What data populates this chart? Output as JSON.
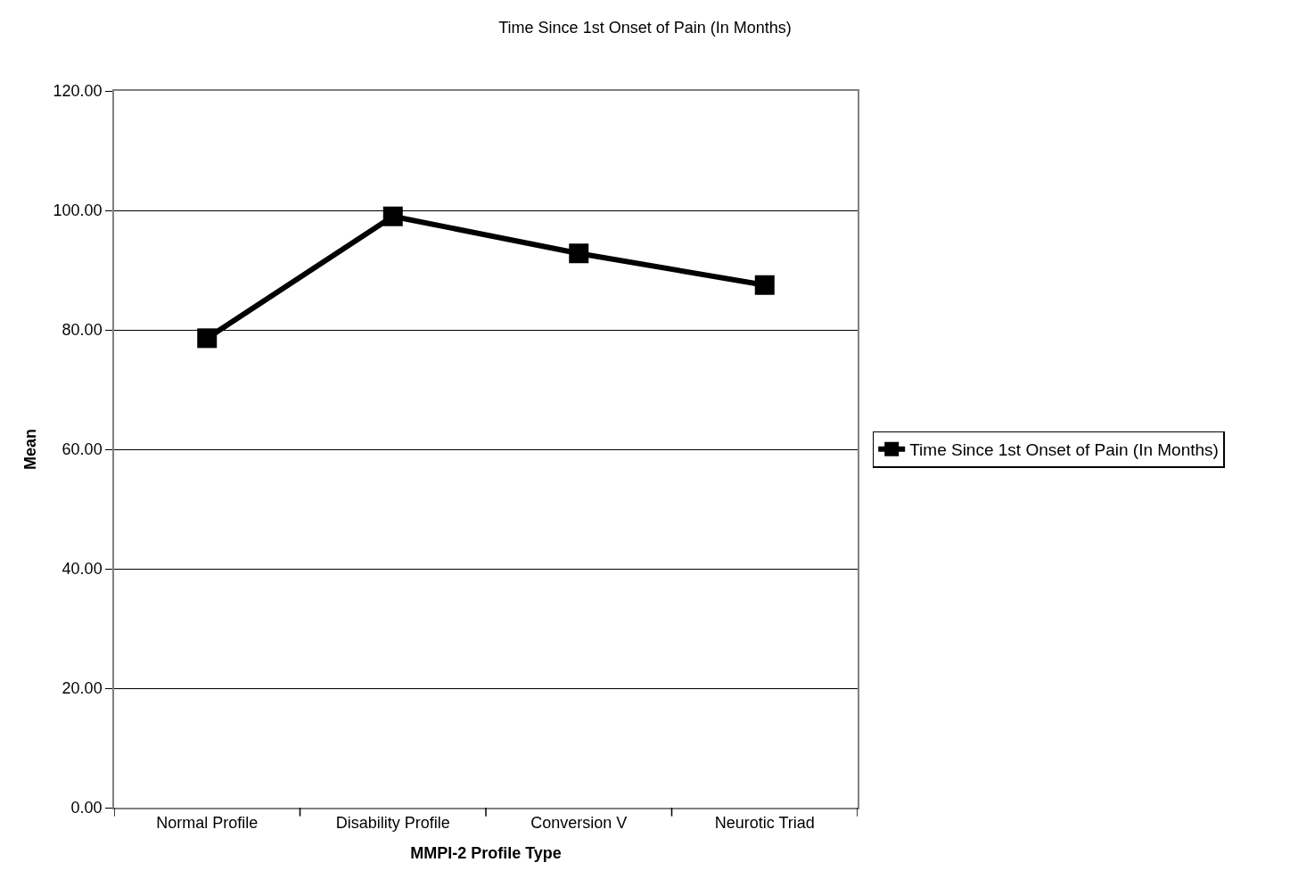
{
  "chart_data": {
    "type": "line",
    "title": "Time Since 1st Onset of Pain (In Months)",
    "xlabel": "MMPI-2 Profile Type",
    "ylabel": "Mean",
    "categories": [
      "Normal Profile",
      "Disability Profile",
      "Conversion V",
      "Neurotic Triad"
    ],
    "series": [
      {
        "name": "Time Since 1st Onset of Pain (In Months)",
        "color": "#000000",
        "values": [
          78.6,
          99.0,
          92.8,
          87.5
        ]
      }
    ],
    "ylim": [
      0,
      120
    ],
    "yticks": [
      {
        "value": 0,
        "label": "0.00"
      },
      {
        "value": 20,
        "label": "20.00"
      },
      {
        "value": 40,
        "label": "40.00"
      },
      {
        "value": 60,
        "label": "60.00"
      },
      {
        "value": 80,
        "label": "80.00"
      },
      {
        "value": 100,
        "label": "100.00"
      },
      {
        "value": 120,
        "label": "120.00"
      }
    ],
    "grid": "y",
    "legend": "right",
    "marker": "square",
    "line_style": "solid"
  }
}
